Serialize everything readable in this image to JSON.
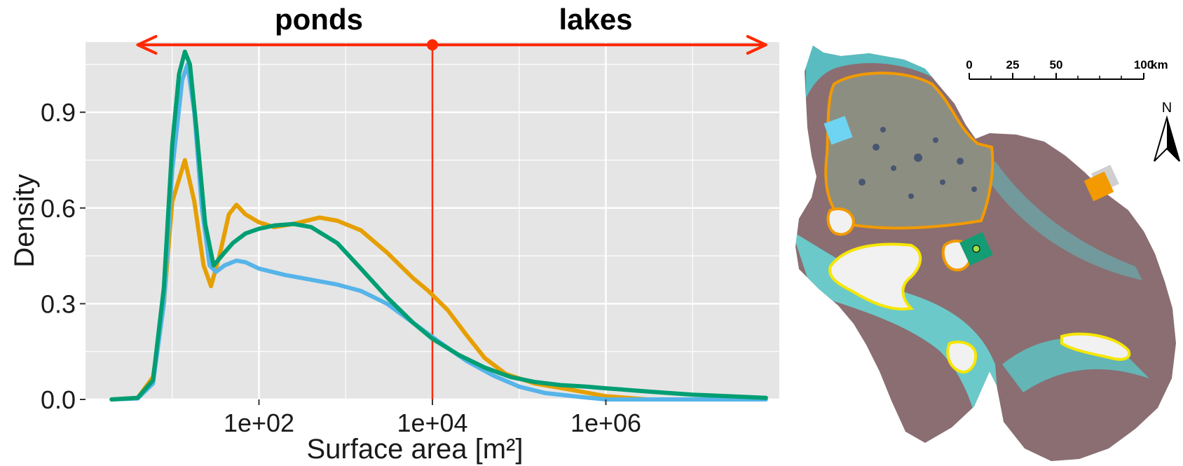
{
  "chart_data": {
    "type": "line",
    "x_scale": "log10",
    "xlim": [
      1.0,
      100000000.0
    ],
    "ylim": [
      0,
      1.12
    ],
    "grid": true,
    "xlabel": "Surface area [m²]",
    "ylabel": "Density",
    "x_ticks": [
      {
        "value": 100,
        "label": "1e+02"
      },
      {
        "value": 10000,
        "label": "1e+04"
      },
      {
        "value": 1000000,
        "label": "1e+06"
      }
    ],
    "y_ticks": [
      {
        "value": 0.0,
        "label": "0.0"
      },
      {
        "value": 0.3,
        "label": "0.3"
      },
      {
        "value": 0.6,
        "label": "0.6"
      },
      {
        "value": 0.9,
        "label": "0.9"
      }
    ],
    "annotations": {
      "ponds_label": "ponds",
      "lakes_label": "lakes",
      "threshold_x": 10000,
      "arrow_left_x": 4,
      "arrow_right_x": 70000000
    },
    "colors": {
      "panel": "#e5e5e5",
      "grid": "#ffffff",
      "threshold": "#ff2a00"
    },
    "series": [
      {
        "color": "#e69f00",
        "points": [
          [
            2,
            0
          ],
          [
            4,
            0.005
          ],
          [
            6,
            0.07
          ],
          [
            8,
            0.3
          ],
          [
            10,
            0.62
          ],
          [
            14,
            0.75
          ],
          [
            18,
            0.62
          ],
          [
            23,
            0.42
          ],
          [
            28,
            0.355
          ],
          [
            35,
            0.45
          ],
          [
            45,
            0.58
          ],
          [
            55,
            0.61
          ],
          [
            70,
            0.58
          ],
          [
            100,
            0.555
          ],
          [
            150,
            0.54
          ],
          [
            250,
            0.55
          ],
          [
            500,
            0.57
          ],
          [
            800,
            0.56
          ],
          [
            1500,
            0.53
          ],
          [
            3000,
            0.46
          ],
          [
            6000,
            0.38
          ],
          [
            9000,
            0.34
          ],
          [
            15000,
            0.28
          ],
          [
            25000,
            0.2
          ],
          [
            40000,
            0.13
          ],
          [
            70000,
            0.08
          ],
          [
            150000,
            0.05
          ],
          [
            400000,
            0.03
          ],
          [
            1000000,
            0.01
          ],
          [
            3000000,
            0.0
          ],
          [
            70000000,
            0.0
          ]
        ]
      },
      {
        "color": "#56b4e9",
        "points": [
          [
            2,
            0
          ],
          [
            4,
            0.003
          ],
          [
            6,
            0.05
          ],
          [
            8,
            0.3
          ],
          [
            10,
            0.72
          ],
          [
            13,
            1.0
          ],
          [
            15,
            1.05
          ],
          [
            18,
            0.9
          ],
          [
            22,
            0.6
          ],
          [
            27,
            0.42
          ],
          [
            32,
            0.4
          ],
          [
            40,
            0.42
          ],
          [
            55,
            0.435
          ],
          [
            70,
            0.43
          ],
          [
            100,
            0.41
          ],
          [
            200,
            0.39
          ],
          [
            400,
            0.375
          ],
          [
            800,
            0.36
          ],
          [
            1500,
            0.34
          ],
          [
            3000,
            0.3
          ],
          [
            6000,
            0.24
          ],
          [
            12000,
            0.18
          ],
          [
            25000,
            0.12
          ],
          [
            50000,
            0.075
          ],
          [
            100000,
            0.04
          ],
          [
            200000,
            0.02
          ],
          [
            500000,
            0.008
          ],
          [
            1000000,
            0.0
          ],
          [
            70000000,
            0.0
          ]
        ]
      },
      {
        "color": "#009e73",
        "points": [
          [
            2,
            0
          ],
          [
            4,
            0.005
          ],
          [
            6,
            0.06
          ],
          [
            8,
            0.35
          ],
          [
            10,
            0.8
          ],
          [
            12,
            1.02
          ],
          [
            14,
            1.09
          ],
          [
            16,
            1.05
          ],
          [
            19,
            0.85
          ],
          [
            24,
            0.55
          ],
          [
            30,
            0.42
          ],
          [
            40,
            0.46
          ],
          [
            50,
            0.49
          ],
          [
            70,
            0.52
          ],
          [
            100,
            0.535
          ],
          [
            150,
            0.545
          ],
          [
            250,
            0.55
          ],
          [
            400,
            0.54
          ],
          [
            800,
            0.49
          ],
          [
            1500,
            0.41
          ],
          [
            3000,
            0.32
          ],
          [
            6000,
            0.24
          ],
          [
            10000,
            0.19
          ],
          [
            20000,
            0.14
          ],
          [
            40000,
            0.1
          ],
          [
            80000,
            0.07
          ],
          [
            150000,
            0.055
          ],
          [
            300000,
            0.045
          ],
          [
            600000,
            0.04
          ],
          [
            1000000,
            0.035
          ],
          [
            3000000,
            0.025
          ],
          [
            10000000,
            0.015
          ],
          [
            70000000,
            0.005
          ]
        ]
      }
    ]
  },
  "map": {
    "scale_labels": [
      "0",
      "25",
      "50",
      "100"
    ],
    "scale_unit": "km",
    "north_label": "N",
    "colors": {
      "water": "#6cc9c9",
      "land": "#8a6e72",
      "pond_land": "#8d8e82",
      "orange_outline": "#f29a00",
      "yellow_outline": "#f7e600",
      "lake_fill": "#f1f1f1",
      "site_light_blue": "#6fd3f2",
      "site_orange": "#f29a00",
      "site_green": "#149c74",
      "site_gray": "#cfcfcf"
    }
  }
}
